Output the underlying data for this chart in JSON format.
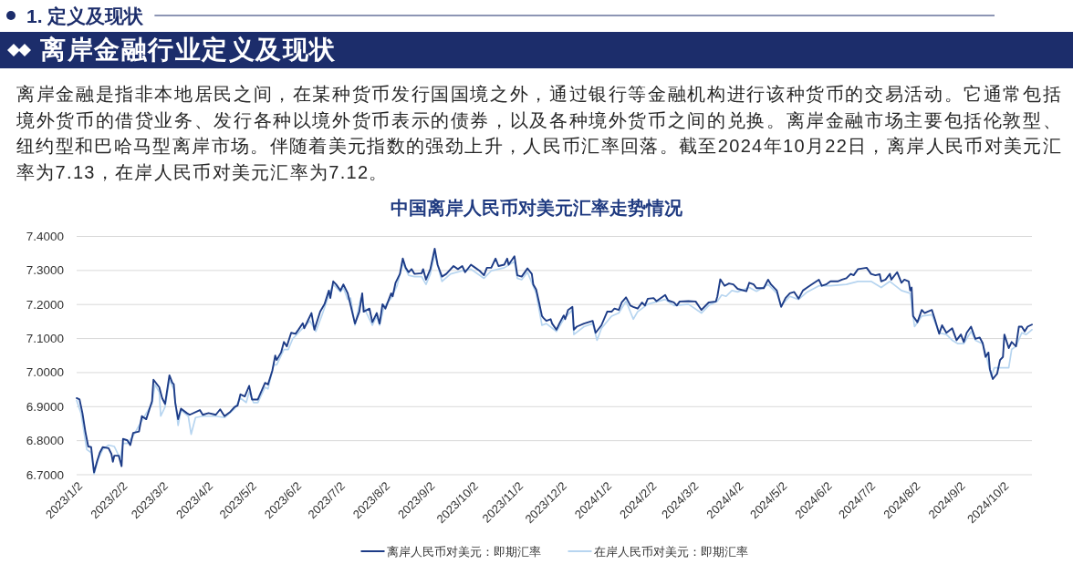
{
  "chart_data": {
    "type": "line",
    "title": "中国离岸人民币对美元汇率走势情况",
    "annotations": [
      "1. 定义及现状",
      "离岸金融行业定义及现状",
      "离岸金融是指非本地居民之间，在某种货币发行国国境之外，通过银行等金融机构进行该种货币的交易活动。它通常包括境外货币的借贷业务、发行各种以境外货币表示的债券，以及各种境外货币之间的兑换。离岸金融市场主要包括伦敦型、纽约型和巴哈马型离岸市场。伴随着美元指数的强劲上升，人民币汇率回落。截至2024年10月22日，离岸人民币对美元汇率为7.13，在岸人民币对美元汇率为7.12。"
    ],
    "xlim": [
      "2023-01-02",
      "2024-10-22"
    ],
    "xticks": [
      {
        "value": "2023-01-02",
        "label": "2023/1/2"
      },
      {
        "value": "2023-02-02",
        "label": "2023/2/2"
      },
      {
        "value": "2023-03-02",
        "label": "2023/3/2"
      },
      {
        "value": "2023-04-02",
        "label": "2023/4/2"
      },
      {
        "value": "2023-05-02",
        "label": "2023/5/2"
      },
      {
        "value": "2023-06-02",
        "label": "2023/6/2"
      },
      {
        "value": "2023-07-02",
        "label": "2023/7/2"
      },
      {
        "value": "2023-08-02",
        "label": "2023/8/2"
      },
      {
        "value": "2023-09-02",
        "label": "2023/9/2"
      },
      {
        "value": "2023-10-02",
        "label": "2023/10/2"
      },
      {
        "value": "2023-11-02",
        "label": "2023/11/2"
      },
      {
        "value": "2023-12-02",
        "label": "2023/12/2"
      },
      {
        "value": "2024-01-02",
        "label": "2024/1/2"
      },
      {
        "value": "2024-02-02",
        "label": "2024/2/2"
      },
      {
        "value": "2024-03-02",
        "label": "2024/3/2"
      },
      {
        "value": "2024-04-02",
        "label": "2024/4/2"
      },
      {
        "value": "2024-05-02",
        "label": "2024/5/2"
      },
      {
        "value": "2024-06-02",
        "label": "2024/6/2"
      },
      {
        "value": "2024-07-02",
        "label": "2024/7/2"
      },
      {
        "value": "2024-08-02",
        "label": "2024/8/2"
      },
      {
        "value": "2024-09-02",
        "label": "2024/9/2"
      },
      {
        "value": "2024-10-02",
        "label": "2024/10/2"
      }
    ],
    "ylim": [
      6.7,
      7.4
    ],
    "yticks": [
      {
        "value": 6.7,
        "label": "6.7000"
      },
      {
        "value": 6.8,
        "label": "6.8000"
      },
      {
        "value": 6.9,
        "label": "6.9000"
      },
      {
        "value": 7.0,
        "label": "7.0000"
      },
      {
        "value": 7.1,
        "label": "7.1000"
      },
      {
        "value": 7.2,
        "label": "7.2000"
      },
      {
        "value": 7.3,
        "label": "7.3000"
      },
      {
        "value": 7.4,
        "label": "7.4000"
      }
    ],
    "grid": "y",
    "legend": "bottom",
    "series": [
      {
        "name": "离岸人民币对美元：即期汇率",
        "color": "#1d3c87",
        "x": [
          "2023-01-02",
          "2023-01-04",
          "2023-01-06",
          "2023-01-08",
          "2023-01-10",
          "2023-01-12",
          "2023-01-14",
          "2023-01-16",
          "2023-01-18",
          "2023-01-20",
          "2023-01-24",
          "2023-01-26",
          "2023-01-27",
          "2023-01-28",
          "2023-01-31",
          "2023-02-02",
          "2023-02-03",
          "2023-02-06",
          "2023-02-08",
          "2023-02-10",
          "2023-02-14",
          "2023-02-16",
          "2023-02-19",
          "2023-02-23",
          "2023-02-24",
          "2023-02-28",
          "2023-03-02",
          "2023-03-04",
          "2023-03-07",
          "2023-03-09",
          "2023-03-10",
          "2023-03-11",
          "2023-03-13",
          "2023-03-15",
          "2023-03-19",
          "2023-03-21",
          "2023-03-28",
          "2023-03-30",
          "2023-04-03",
          "2023-04-08",
          "2023-04-11",
          "2023-04-14",
          "2023-04-18",
          "2023-04-21",
          "2023-04-23",
          "2023-04-25",
          "2023-04-28",
          "2023-05-01",
          "2023-05-03",
          "2023-05-07",
          "2023-05-12",
          "2023-05-14",
          "2023-05-17",
          "2023-05-19",
          "2023-05-20",
          "2023-05-23",
          "2023-05-25",
          "2023-05-27",
          "2023-05-30",
          "2023-06-02",
          "2023-06-04",
          "2023-06-07",
          "2023-06-08",
          "2023-06-11",
          "2023-06-13",
          "2023-06-15",
          "2023-06-19",
          "2023-06-22",
          "2023-06-25",
          "2023-06-26",
          "2023-06-28",
          "2023-06-30",
          "2023-07-03",
          "2023-07-05",
          "2023-07-08",
          "2023-07-13",
          "2023-07-16",
          "2023-07-18",
          "2023-07-19",
          "2023-07-23",
          "2023-07-25",
          "2023-07-28",
          "2023-07-30",
          "2023-08-01",
          "2023-08-03",
          "2023-08-07",
          "2023-08-08",
          "2023-08-10",
          "2023-08-13",
          "2023-08-15",
          "2023-08-17",
          "2023-08-19",
          "2023-08-21",
          "2023-08-23",
          "2023-08-28",
          "2023-08-29",
          "2023-08-31",
          "2023-09-03",
          "2023-09-06",
          "2023-09-08",
          "2023-09-11",
          "2023-09-14",
          "2023-09-17",
          "2023-09-19",
          "2023-09-22",
          "2023-09-25",
          "2023-09-27",
          "2023-10-01",
          "2023-10-04",
          "2023-10-07",
          "2023-10-10",
          "2023-10-12",
          "2023-10-15",
          "2023-10-18",
          "2023-10-20",
          "2023-10-24",
          "2023-10-26",
          "2023-10-27",
          "2023-10-31",
          "2023-11-02",
          "2023-11-05",
          "2023-11-09",
          "2023-11-12",
          "2023-11-13",
          "2023-11-15",
          "2023-11-17",
          "2023-11-19",
          "2023-11-20",
          "2023-11-22",
          "2023-11-25",
          "2023-11-26",
          "2023-11-29",
          "2023-12-01",
          "2023-12-04",
          "2023-12-05",
          "2023-12-07",
          "2023-12-10",
          "2023-12-11",
          "2023-12-13",
          "2023-12-18",
          "2023-12-21",
          "2023-12-24",
          "2023-12-26",
          "2023-12-30",
          "2024-01-03",
          "2024-01-06",
          "2024-01-08",
          "2024-01-11",
          "2024-01-13",
          "2024-01-16",
          "2024-01-19",
          "2024-01-21",
          "2024-01-24",
          "2024-01-27",
          "2024-01-29",
          "2024-01-31",
          "2024-02-04",
          "2024-02-06",
          "2024-02-12",
          "2024-02-14",
          "2024-02-18",
          "2024-02-20",
          "2024-02-22",
          "2024-02-28",
          "2024-03-04",
          "2024-03-08",
          "2024-03-13",
          "2024-03-18",
          "2024-03-19",
          "2024-03-21",
          "2024-03-24",
          "2024-03-27",
          "2024-03-30",
          "2024-04-02",
          "2024-04-08",
          "2024-04-10",
          "2024-04-13",
          "2024-04-15",
          "2024-04-20",
          "2024-04-23",
          "2024-04-25",
          "2024-04-29",
          "2024-05-02",
          "2024-05-05",
          "2024-05-08",
          "2024-05-11",
          "2024-05-14",
          "2024-05-17",
          "2024-05-20",
          "2024-05-23",
          "2024-05-28",
          "2024-05-30",
          "2024-06-02",
          "2024-06-05",
          "2024-06-10",
          "2024-06-13",
          "2024-06-16",
          "2024-06-19",
          "2024-06-21",
          "2024-06-24",
          "2024-06-30",
          "2024-07-03",
          "2024-07-06",
          "2024-07-09",
          "2024-07-10",
          "2024-07-13",
          "2024-07-16",
          "2024-07-17",
          "2024-07-21",
          "2024-07-24",
          "2024-07-26",
          "2024-07-29",
          "2024-07-30",
          "2024-07-31",
          "2024-08-01",
          "2024-08-04",
          "2024-08-07",
          "2024-08-09",
          "2024-08-11",
          "2024-08-14",
          "2024-08-16",
          "2024-08-19",
          "2024-08-21",
          "2024-08-24",
          "2024-08-28",
          "2024-08-31",
          "2024-09-03",
          "2024-09-05",
          "2024-09-07",
          "2024-09-10",
          "2024-09-13",
          "2024-09-16",
          "2024-09-18",
          "2024-09-20",
          "2024-09-22",
          "2024-09-23",
          "2024-09-25",
          "2024-09-28",
          "2024-09-30",
          "2024-10-02",
          "2024-10-03",
          "2024-10-06",
          "2024-10-08",
          "2024-10-11",
          "2024-10-13",
          "2024-10-15",
          "2024-10-17",
          "2024-10-19",
          "2024-10-22"
        ],
        "values": [
          6.925,
          6.921,
          6.881,
          6.827,
          6.783,
          6.781,
          6.707,
          6.738,
          6.765,
          6.781,
          6.778,
          6.761,
          6.738,
          6.756,
          6.756,
          6.725,
          6.805,
          6.801,
          6.787,
          6.823,
          6.827,
          6.872,
          6.863,
          6.916,
          6.979,
          6.957,
          6.925,
          6.908,
          6.992,
          6.97,
          6.966,
          6.912,
          6.863,
          6.894,
          6.881,
          6.876,
          6.89,
          6.876,
          6.881,
          6.876,
          6.892,
          6.872,
          6.885,
          6.899,
          6.903,
          6.936,
          6.93,
          6.961,
          6.921,
          6.921,
          6.97,
          6.965,
          7.006,
          7.05,
          7.037,
          7.059,
          7.09,
          7.077,
          7.117,
          7.114,
          7.126,
          7.145,
          7.13,
          7.157,
          7.175,
          7.126,
          7.179,
          7.201,
          7.241,
          7.219,
          7.268,
          7.259,
          7.241,
          7.259,
          7.233,
          7.144,
          7.179,
          7.233,
          7.179,
          7.188,
          7.148,
          7.175,
          7.144,
          7.201,
          7.188,
          7.233,
          7.224,
          7.264,
          7.29,
          7.335,
          7.308,
          7.295,
          7.304,
          7.29,
          7.292,
          7.304,
          7.273,
          7.304,
          7.364,
          7.317,
          7.282,
          7.29,
          7.304,
          7.313,
          7.304,
          7.313,
          7.295,
          7.317,
          7.308,
          7.299,
          7.286,
          7.308,
          7.308,
          7.335,
          7.313,
          7.317,
          7.335,
          7.317,
          7.342,
          7.286,
          7.282,
          7.306,
          7.29,
          7.259,
          7.244,
          7.206,
          7.166,
          7.161,
          7.152,
          7.157,
          7.144,
          7.126,
          7.144,
          7.168,
          7.157,
          7.184,
          7.193,
          7.126,
          7.135,
          7.144,
          7.148,
          7.152,
          7.117,
          7.139,
          7.179,
          7.179,
          7.188,
          7.184,
          7.206,
          7.221,
          7.197,
          7.193,
          7.188,
          7.206,
          7.197,
          7.217,
          7.219,
          7.21,
          7.228,
          7.212,
          7.206,
          7.197,
          7.209,
          7.21,
          7.209,
          7.184,
          7.206,
          7.209,
          7.224,
          7.274,
          7.255,
          7.262,
          7.259,
          7.246,
          7.239,
          7.264,
          7.259,
          7.248,
          7.248,
          7.273,
          7.259,
          7.241,
          7.193,
          7.219,
          7.233,
          7.237,
          7.217,
          7.241,
          7.25,
          7.259,
          7.273,
          7.255,
          7.259,
          7.268,
          7.268,
          7.273,
          7.277,
          7.29,
          7.286,
          7.304,
          7.308,
          7.29,
          7.286,
          7.289,
          7.268,
          7.273,
          7.29,
          7.273,
          7.295,
          7.264,
          7.273,
          7.268,
          7.241,
          7.25,
          7.166,
          7.148,
          7.184,
          7.175,
          7.179,
          7.184,
          7.157,
          7.114,
          7.139,
          7.117,
          7.13,
          7.095,
          7.112,
          7.09,
          7.117,
          7.135,
          7.099,
          7.103,
          7.087,
          7.046,
          7.059,
          7.01,
          6.981,
          6.997,
          7.037,
          7.046,
          7.112,
          7.072,
          7.09,
          7.077,
          7.135,
          7.135,
          7.121,
          7.135,
          7.141
        ]
      },
      {
        "name": "在岸人民币对美元：即期汇率",
        "color": "#b7d5f0",
        "x": [
          "2023-01-02",
          "2023-01-05",
          "2023-01-09",
          "2023-01-12",
          "2023-01-14",
          "2023-01-17",
          "2023-01-20",
          "2023-01-24",
          "2023-01-28",
          "2023-02-01",
          "2023-02-03",
          "2023-02-06",
          "2023-02-10",
          "2023-02-16",
          "2023-02-23",
          "2023-02-25",
          "2023-02-28",
          "2023-03-01",
          "2023-03-04",
          "2023-03-07",
          "2023-03-10",
          "2023-03-13",
          "2023-03-15",
          "2023-03-20",
          "2023-03-22",
          "2023-03-25",
          "2023-03-30",
          "2023-04-08",
          "2023-04-14",
          "2023-04-21",
          "2023-04-25",
          "2023-04-29",
          "2023-05-01",
          "2023-05-04",
          "2023-05-07",
          "2023-05-12",
          "2023-05-14",
          "2023-05-18",
          "2023-05-20",
          "2023-05-25",
          "2023-05-28",
          "2023-05-31",
          "2023-06-04",
          "2023-06-08",
          "2023-06-12",
          "2023-06-16",
          "2023-06-20",
          "2023-06-25",
          "2023-06-28",
          "2023-07-03",
          "2023-07-05",
          "2023-07-08",
          "2023-07-10",
          "2023-07-13",
          "2023-07-17",
          "2023-07-21",
          "2023-07-25",
          "2023-07-28",
          "2023-07-30",
          "2023-08-02",
          "2023-08-07",
          "2023-08-11",
          "2023-08-15",
          "2023-08-19",
          "2023-08-23",
          "2023-08-28",
          "2023-08-31",
          "2023-09-03",
          "2023-09-06",
          "2023-09-11",
          "2023-09-17",
          "2023-09-25",
          "2023-10-01",
          "2023-10-10",
          "2023-10-15",
          "2023-10-24",
          "2023-10-31",
          "2023-11-02",
          "2023-11-05",
          "2023-11-09",
          "2023-11-15",
          "2023-11-19",
          "2023-11-22",
          "2023-11-29",
          "2023-12-04",
          "2023-12-10",
          "2023-12-11",
          "2023-12-18",
          "2023-12-24",
          "2023-12-27",
          "2023-12-30",
          "2024-01-06",
          "2024-01-11",
          "2024-01-16",
          "2024-01-21",
          "2024-01-24",
          "2024-01-31",
          "2024-02-12",
          "2024-02-18",
          "2024-02-28",
          "2024-03-08",
          "2024-03-13",
          "2024-03-19",
          "2024-03-22",
          "2024-03-25",
          "2024-03-29",
          "2024-04-02",
          "2024-04-10",
          "2024-04-15",
          "2024-04-23",
          "2024-04-29",
          "2024-05-02",
          "2024-05-08",
          "2024-05-14",
          "2024-05-20",
          "2024-05-28",
          "2024-06-05",
          "2024-06-16",
          "2024-06-24",
          "2024-07-03",
          "2024-07-10",
          "2024-07-16",
          "2024-07-24",
          "2024-07-30",
          "2024-08-02",
          "2024-08-07",
          "2024-08-14",
          "2024-08-19",
          "2024-08-24",
          "2024-08-28",
          "2024-09-01",
          "2024-09-05",
          "2024-09-10",
          "2024-09-13",
          "2024-09-18",
          "2024-09-20",
          "2024-09-24",
          "2024-09-26",
          "2024-09-29",
          "2024-10-06",
          "2024-10-08",
          "2024-10-11",
          "2024-10-15",
          "2024-10-18",
          "2024-10-22"
        ],
        "values": [
          6.918,
          6.881,
          6.774,
          6.765,
          6.702,
          6.747,
          6.774,
          6.787,
          6.783,
          6.747,
          6.792,
          6.792,
          6.814,
          6.859,
          6.908,
          6.965,
          6.943,
          6.872,
          6.899,
          6.979,
          6.952,
          6.845,
          6.89,
          6.872,
          6.819,
          6.868,
          6.872,
          6.872,
          6.868,
          6.894,
          6.925,
          6.912,
          6.943,
          6.912,
          6.912,
          6.957,
          6.952,
          7.023,
          7.023,
          7.068,
          7.068,
          7.099,
          7.117,
          7.135,
          7.152,
          7.121,
          7.166,
          7.228,
          7.259,
          7.237,
          7.25,
          7.215,
          7.219,
          7.139,
          7.219,
          7.175,
          7.139,
          7.166,
          7.139,
          7.193,
          7.219,
          7.255,
          7.322,
          7.286,
          7.282,
          7.282,
          7.259,
          7.29,
          7.348,
          7.268,
          7.29,
          7.299,
          7.304,
          7.277,
          7.299,
          7.308,
          7.326,
          7.277,
          7.273,
          7.295,
          7.233,
          7.139,
          7.144,
          7.121,
          7.157,
          7.184,
          7.112,
          7.135,
          7.144,
          7.095,
          7.13,
          7.166,
          7.175,
          7.21,
          7.157,
          7.179,
          7.201,
          7.215,
          7.197,
          7.201,
          7.175,
          7.197,
          7.21,
          7.228,
          7.224,
          7.241,
          7.237,
          7.25,
          7.239,
          7.259,
          7.233,
          7.197,
          7.224,
          7.215,
          7.237,
          7.255,
          7.255,
          7.259,
          7.268,
          7.268,
          7.25,
          7.268,
          7.241,
          7.233,
          7.135,
          7.166,
          7.17,
          7.117,
          7.112,
          7.095,
          7.085,
          7.085,
          7.121,
          7.095,
          7.085,
          7.059,
          6.988,
          7.014,
          7.014,
          7.014,
          7.068,
          7.077,
          7.117,
          7.112,
          7.126
        ]
      }
    ]
  }
}
